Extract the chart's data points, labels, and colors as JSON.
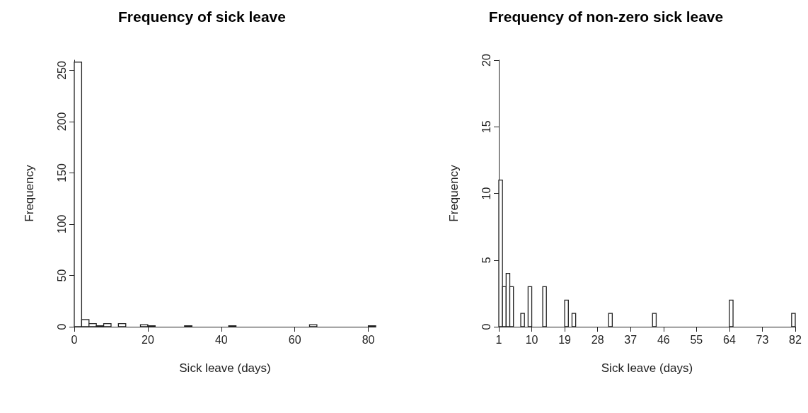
{
  "chart_data": [
    {
      "type": "histogram",
      "title": "Frequency of sick leave",
      "xlabel": "Sick leave (days)",
      "ylabel": "Frequency",
      "color": "#ffffff",
      "bins": [
        0,
        2,
        4,
        6,
        8,
        10,
        12,
        14,
        16,
        18,
        20,
        22,
        24,
        26,
        28,
        30,
        32,
        34,
        36,
        38,
        40,
        42,
        44,
        46,
        48,
        50,
        52,
        54,
        56,
        58,
        60,
        62,
        64,
        66,
        68,
        70,
        72,
        74,
        76,
        78,
        80,
        82
      ],
      "values": [
        258,
        7,
        3,
        1,
        3,
        0,
        3,
        0,
        0,
        2,
        1,
        0,
        0,
        0,
        0,
        1,
        0,
        0,
        0,
        0,
        0,
        1,
        0,
        0,
        0,
        0,
        0,
        0,
        0,
        0,
        0,
        0,
        2,
        0,
        0,
        0,
        0,
        0,
        0,
        0,
        1
      ],
      "xlim": [
        0,
        82
      ],
      "xticks": [
        0,
        20,
        40,
        60,
        80
      ],
      "ylim": [
        0,
        260
      ],
      "yticks": [
        0,
        50,
        100,
        150,
        200,
        250
      ]
    },
    {
      "type": "histogram",
      "title": "Frequency of non-zero sick leave",
      "xlabel": "Sick leave (days)",
      "ylabel": "Frequency",
      "color": "#ffffff",
      "bins": [
        1,
        2,
        3,
        4,
        5,
        6,
        7,
        8,
        9,
        10,
        11,
        12,
        13,
        14,
        15,
        16,
        17,
        18,
        19,
        20,
        21,
        22,
        23,
        24,
        25,
        26,
        27,
        28,
        29,
        30,
        31,
        32,
        33,
        34,
        35,
        36,
        37,
        38,
        39,
        40,
        41,
        42,
        43,
        44,
        45,
        46,
        47,
        48,
        49,
        50,
        51,
        52,
        53,
        54,
        55,
        56,
        57,
        58,
        59,
        60,
        61,
        62,
        63,
        64,
        65,
        66,
        67,
        68,
        69,
        70,
        71,
        72,
        73,
        74,
        75,
        76,
        77,
        78,
        79,
        80,
        81,
        82
      ],
      "values": [
        11,
        3,
        4,
        3,
        0,
        0,
        1,
        0,
        3,
        0,
        0,
        0,
        3,
        0,
        0,
        0,
        0,
        0,
        2,
        0,
        1,
        0,
        0,
        0,
        0,
        0,
        0,
        0,
        0,
        0,
        1,
        0,
        0,
        0,
        0,
        0,
        0,
        0,
        0,
        0,
        0,
        0,
        1,
        0,
        0,
        0,
        0,
        0,
        0,
        0,
        0,
        0,
        0,
        0,
        0,
        0,
        0,
        0,
        0,
        0,
        0,
        0,
        0,
        2,
        0,
        0,
        0,
        0,
        0,
        0,
        0,
        0,
        0,
        0,
        0,
        0,
        0,
        0,
        0,
        0,
        1
      ],
      "xlim": [
        1,
        82
      ],
      "xticks": [
        1,
        10,
        19,
        28,
        37,
        46,
        55,
        64,
        73,
        82
      ],
      "ylim": [
        0,
        20
      ],
      "yticks": [
        0,
        5,
        10,
        15,
        20
      ]
    }
  ]
}
